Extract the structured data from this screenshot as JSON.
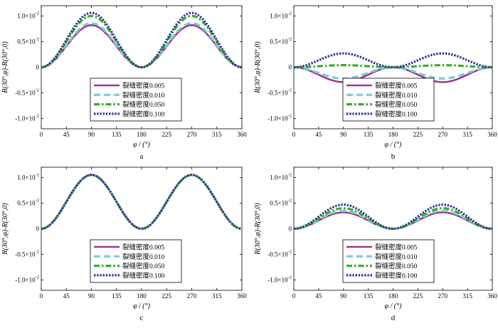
{
  "chart_data": [
    {
      "type": "line",
      "panel_label": "a",
      "xlabel": "φ / (°)",
      "ylabel": "R(30°,φ)-R(30°,0)",
      "xlim": [
        0,
        360
      ],
      "ylim": [
        -0.012,
        0.012
      ],
      "xticks": [
        "0",
        "45",
        "90",
        "135",
        "180",
        "225",
        "270",
        "315",
        "360"
      ],
      "yticks": [
        {
          "value": 0.01,
          "label": "1.0×10⁻²"
        },
        {
          "value": 0.005,
          "label": "0.5×10⁻²"
        },
        {
          "value": 0,
          "label": "0"
        },
        {
          "value": -0.005,
          "label": "-0.5×10⁻²"
        },
        {
          "value": -0.01,
          "label": "-1.0×10⁻²"
        }
      ],
      "x": [
        0,
        45,
        90,
        135,
        180,
        225,
        270,
        315,
        360
      ],
      "series": [
        {
          "name": "裂缝密度0.005",
          "values": [
            0,
            0.0041,
            0.0082,
            0.0041,
            0,
            0.0041,
            0.0082,
            0.0041,
            0
          ]
        },
        {
          "name": "裂缝密度0.010",
          "values": [
            0,
            0.0043,
            0.0086,
            0.0043,
            0,
            0.0043,
            0.0086,
            0.0043,
            0
          ]
        },
        {
          "name": "裂缝密度0.050",
          "values": [
            0,
            0.005,
            0.01,
            0.005,
            0,
            0.005,
            0.01,
            0.005,
            0
          ]
        },
        {
          "name": "裂缝密度0.100",
          "values": [
            0,
            0.0053,
            0.0106,
            0.0053,
            0,
            0.0053,
            0.0106,
            0.0053,
            0
          ]
        }
      ]
    },
    {
      "type": "line",
      "panel_label": "b",
      "xlabel": "φ / (°)",
      "ylabel": "R(30°,φ)-R(30°,0)",
      "xlim": [
        0,
        360
      ],
      "ylim": [
        -0.012,
        0.012
      ],
      "xticks": [
        "0",
        "45",
        "90",
        "135",
        "180",
        "225",
        "270",
        "315",
        "360"
      ],
      "yticks": [
        {
          "value": 0.01,
          "label": "1.0×10⁻²"
        },
        {
          "value": 0.005,
          "label": "0.5×10⁻²"
        },
        {
          "value": 0,
          "label": "0"
        },
        {
          "value": -0.005,
          "label": "-0.5×10⁻²"
        },
        {
          "value": -0.01,
          "label": "-1.0×10⁻²"
        }
      ],
      "x": [
        0,
        45,
        90,
        135,
        180,
        225,
        270,
        315,
        360
      ],
      "series": [
        {
          "name": "裂缝密度0.005",
          "values": [
            0,
            -0.0014,
            -0.0029,
            -0.0014,
            0,
            -0.0014,
            -0.0029,
            -0.0014,
            0
          ]
        },
        {
          "name": "裂缝密度0.010",
          "values": [
            0,
            -0.0011,
            -0.0022,
            -0.0011,
            0,
            -0.0011,
            -0.0022,
            -0.0011,
            0
          ]
        },
        {
          "name": "裂缝密度0.050",
          "values": [
            0,
            0.0002,
            0.0004,
            0.0002,
            0,
            0.0002,
            0.0004,
            0.0002,
            0
          ]
        },
        {
          "name": "裂缝密度0.100",
          "values": [
            0,
            0.00135,
            0.0027,
            0.00135,
            0,
            0.00135,
            0.0027,
            0.00135,
            0
          ]
        }
      ]
    },
    {
      "type": "line",
      "panel_label": "c",
      "xlabel": "φ / (°)",
      "ylabel": "R(30°,φ)-R(30°,0)",
      "xlim": [
        0,
        360
      ],
      "ylim": [
        -0.012,
        0.012
      ],
      "xticks": [
        "0",
        "45",
        "90",
        "135",
        "180",
        "225",
        "270",
        "315",
        "360"
      ],
      "yticks": [
        {
          "value": 0.01,
          "label": "1.0×10⁻²"
        },
        {
          "value": 0.005,
          "label": "0.5×10⁻²"
        },
        {
          "value": 0,
          "label": "0"
        },
        {
          "value": -0.005,
          "label": "-0.5×10⁻²"
        },
        {
          "value": -0.01,
          "label": "-1.0×10⁻²"
        }
      ],
      "x": [
        0,
        45,
        90,
        135,
        180,
        225,
        270,
        315,
        360
      ],
      "series": [
        {
          "name": "裂缝密度0.005",
          "values": [
            0,
            0.00525,
            0.0105,
            0.00525,
            0,
            0.00525,
            0.0105,
            0.00525,
            0
          ]
        },
        {
          "name": "裂缝密度0.010",
          "values": [
            0,
            0.00525,
            0.0105,
            0.00525,
            0,
            0.00525,
            0.0105,
            0.00525,
            0
          ]
        },
        {
          "name": "裂缝密度0.050",
          "values": [
            0,
            0.00525,
            0.0105,
            0.00525,
            0,
            0.00525,
            0.0105,
            0.00525,
            0
          ]
        },
        {
          "name": "裂缝密度0.100",
          "values": [
            0,
            0.00525,
            0.0105,
            0.00525,
            0,
            0.00525,
            0.0105,
            0.00525,
            0
          ]
        }
      ]
    },
    {
      "type": "line",
      "panel_label": "d",
      "xlabel": "φ / (°)",
      "ylabel": "R(30°,φ)-R(30°,0)",
      "xlim": [
        0,
        360
      ],
      "ylim": [
        -0.012,
        0.012
      ],
      "xticks": [
        "0",
        "45",
        "90",
        "135",
        "180",
        "225",
        "270",
        "315",
        "360"
      ],
      "yticks": [
        {
          "value": 0.01,
          "label": "1.0×10⁻²"
        },
        {
          "value": 0.005,
          "label": "0.5×10⁻²"
        },
        {
          "value": 0,
          "label": "0"
        },
        {
          "value": -0.005,
          "label": "-0.5×10⁻²"
        },
        {
          "value": -0.01,
          "label": "-1.0×10⁻²"
        }
      ],
      "x": [
        0,
        45,
        90,
        135,
        180,
        225,
        270,
        315,
        360
      ],
      "series": [
        {
          "name": "裂缝密度0.005",
          "values": [
            0,
            0.0016,
            0.0032,
            0.0016,
            0,
            0.0016,
            0.0032,
            0.0016,
            0
          ]
        },
        {
          "name": "裂缝密度0.010",
          "values": [
            0,
            0.00175,
            0.0035,
            0.00175,
            0,
            0.00175,
            0.0035,
            0.00175,
            0
          ]
        },
        {
          "name": "裂缝密度0.050",
          "values": [
            0,
            0.002,
            0.004,
            0.002,
            0,
            0.002,
            0.004,
            0.002,
            0
          ]
        },
        {
          "name": "裂缝密度0.100",
          "values": [
            0,
            0.00235,
            0.0047,
            0.00235,
            0,
            0.00235,
            0.0047,
            0.00235,
            0
          ]
        }
      ]
    }
  ],
  "series_styles": [
    {
      "color": "#a2378f"
    },
    {
      "color": "#7ecbd9"
    },
    {
      "color": "#3faa2b"
    },
    {
      "color": "#2e3b92"
    }
  ]
}
